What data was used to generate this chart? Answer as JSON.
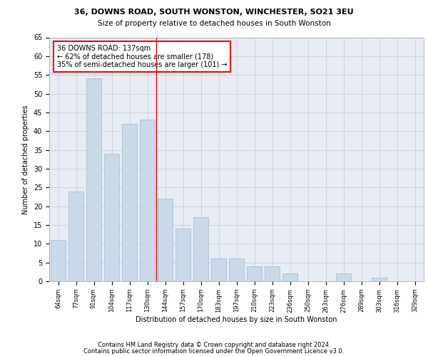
{
  "title1": "36, DOWNS ROAD, SOUTH WONSTON, WINCHESTER, SO21 3EU",
  "title2": "Size of property relative to detached houses in South Wonston",
  "xlabel": "Distribution of detached houses by size in South Wonston",
  "ylabel": "Number of detached properties",
  "categories": [
    "64sqm",
    "77sqm",
    "91sqm",
    "104sqm",
    "117sqm",
    "130sqm",
    "144sqm",
    "157sqm",
    "170sqm",
    "183sqm",
    "197sqm",
    "210sqm",
    "223sqm",
    "236sqm",
    "250sqm",
    "263sqm",
    "276sqm",
    "289sqm",
    "303sqm",
    "316sqm",
    "329sqm"
  ],
  "values": [
    11,
    24,
    54,
    34,
    42,
    43,
    22,
    14,
    17,
    6,
    6,
    4,
    4,
    2,
    0,
    0,
    2,
    0,
    1,
    0,
    0
  ],
  "bar_color": "#c9d9e8",
  "bar_edge_color": "#a0b8cc",
  "vline_x_index": 5.5,
  "vline_color": "red",
  "annotation_text": "36 DOWNS ROAD: 137sqm\n← 62% of detached houses are smaller (178)\n35% of semi-detached houses are larger (101) →",
  "annotation_box_color": "white",
  "annotation_box_edge_color": "red",
  "ylim": [
    0,
    65
  ],
  "yticks": [
    0,
    5,
    10,
    15,
    20,
    25,
    30,
    35,
    40,
    45,
    50,
    55,
    60,
    65
  ],
  "grid_color": "#c8d0dc",
  "background_color": "#e8ecf4",
  "footer1": "Contains HM Land Registry data © Crown copyright and database right 2024.",
  "footer2": "Contains public sector information licensed under the Open Government Licence v3.0."
}
